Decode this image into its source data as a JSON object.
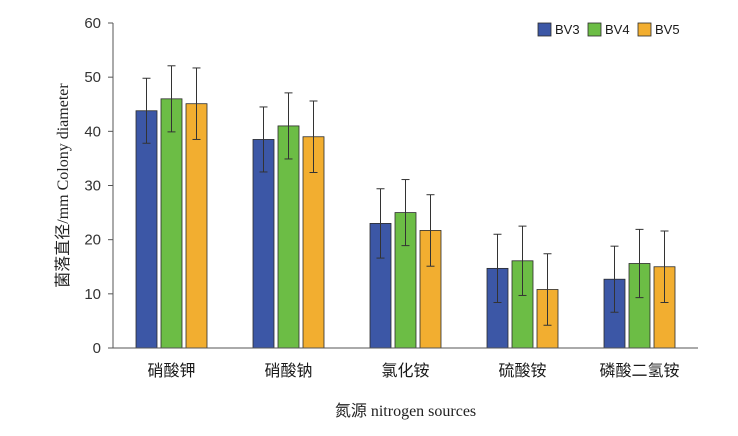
{
  "chart_data": {
    "type": "bar",
    "title": "",
    "xlabel": "氮源 nitrogen sources",
    "ylabel": "菌落直径/mm  Colony diameter",
    "ylim": [
      0,
      60
    ],
    "yticks": [
      0,
      10,
      20,
      30,
      40,
      50,
      60
    ],
    "categories": [
      "硝酸钾",
      "硝酸钠",
      "氯化铵",
      "硫酸铵",
      "磷酸二氢铵"
    ],
    "series": [
      {
        "name": "BV3",
        "color": "#3c57a6",
        "values": [
          43.8,
          38.5,
          23.0,
          14.7,
          12.7
        ],
        "errors": [
          6.0,
          6.0,
          6.4,
          6.3,
          6.1
        ]
      },
      {
        "name": "BV4",
        "color": "#6cbd45",
        "values": [
          46.0,
          41.0,
          25.0,
          16.1,
          15.6
        ],
        "errors": [
          6.1,
          6.1,
          6.1,
          6.4,
          6.3
        ]
      },
      {
        "name": "BV5",
        "color": "#f2ae30",
        "values": [
          45.1,
          39.0,
          21.7,
          10.8,
          15.0
        ],
        "errors": [
          6.6,
          6.6,
          6.6,
          6.6,
          6.6
        ]
      }
    ],
    "legend_position": "top-right",
    "grid": false
  }
}
